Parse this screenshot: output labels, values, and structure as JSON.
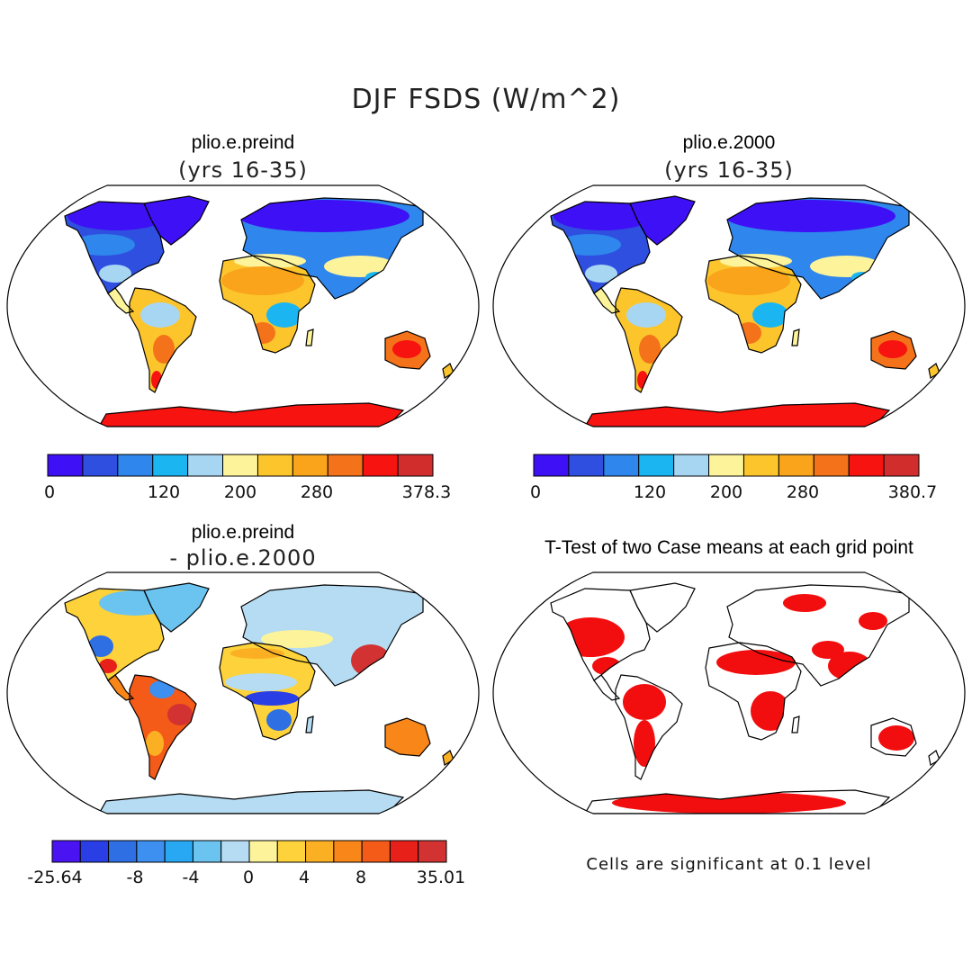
{
  "figure_title": "DJF FSDS (W/m^2)",
  "panels": [
    {
      "id": "p1",
      "title": "plio.e.preind",
      "subtitle": "(yrs 16-35)",
      "colorbar": {
        "colors": [
          "#3e10f5",
          "#2f4fe0",
          "#2f86ec",
          "#1bb6f2",
          "#a7d6f2",
          "#fdf39a",
          "#fdc52c",
          "#f9a41b",
          "#f4731a",
          "#f71310",
          "#d22d2d"
        ],
        "labels": [
          "0",
          "120",
          "200",
          "280",
          "378.3"
        ]
      }
    },
    {
      "id": "p2",
      "title": "plio.e.2000",
      "subtitle": "(yrs 16-35)",
      "colorbar": {
        "colors": [
          "#3e10f5",
          "#2f4fe0",
          "#2f86ec",
          "#1bb6f2",
          "#a7d6f2",
          "#fdf39a",
          "#fdc52c",
          "#f9a41b",
          "#f4731a",
          "#f71310",
          "#d22d2d"
        ],
        "labels": [
          "0",
          "120",
          "200",
          "280",
          "380.7"
        ]
      }
    },
    {
      "id": "p3",
      "title": "plio.e.preind",
      "subtitle": "- plio.e.2000",
      "colorbar": {
        "colors": [
          "#4a14f2",
          "#2a3ee6",
          "#2f6fe4",
          "#3d8ff0",
          "#28a8f2",
          "#6bc3ef",
          "#b5dcf2",
          "#fdf39a",
          "#fdd23a",
          "#fbb024",
          "#f88618",
          "#f45a18",
          "#e8201a",
          "#d23232"
        ],
        "labels": [
          "-25.64",
          "-8",
          "-4",
          "0",
          "4",
          "8",
          "35.01"
        ]
      }
    },
    {
      "id": "p4",
      "title": "T-Test of two Case means at each grid point",
      "significance_color": "#f20e0e",
      "note": "Cells are significant at 0.1 level"
    }
  ]
}
